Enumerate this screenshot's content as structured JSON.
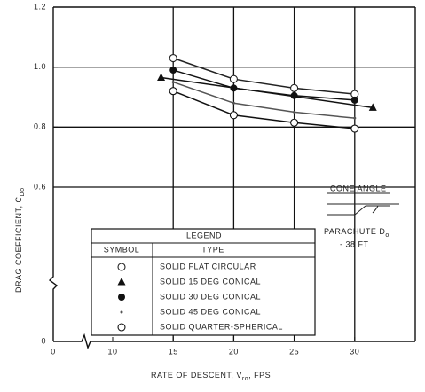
{
  "chart_data": {
    "type": "line",
    "xlabel": "RATE OF DESCENT, V",
    "xlabel_sub": "ro",
    "xlabel_end": ", FPS",
    "ylabel": "DRAG COEFFICIENT, C",
    "ylabel_sub": "Do",
    "xlim": [
      0,
      35
    ],
    "xticks": [
      0,
      10,
      15,
      20,
      25,
      30
    ],
    "ylim": [
      0,
      1.2
    ],
    "yticks": [
      0,
      0.6,
      0.8,
      {
        "value": 1.0,
        "label": "1.0"
      },
      1.2
    ],
    "axis_break": true,
    "grid": true,
    "legend": {
      "title": "LEGEND",
      "symbol_header": "SYMBOL",
      "type_header": "TYPE"
    },
    "series": [
      {
        "name": "SOLID FLAT CIRCULAR",
        "marker": "circle-open",
        "color": "#222",
        "x": [
          15,
          20,
          25,
          30
        ],
        "values": [
          1.03,
          0.96,
          0.93,
          0.91
        ]
      },
      {
        "name": "SOLID 15 DEG CONICAL",
        "marker": "triangle",
        "color": "#111",
        "x": [
          14,
          31.5
        ],
        "values": [
          0.965,
          0.865
        ]
      },
      {
        "name": "SOLID 30 DEG CONICAL",
        "marker": "circle-filled",
        "color": "#111",
        "x": [
          15,
          20,
          25,
          30
        ],
        "values": [
          0.99,
          0.93,
          0.905,
          0.89
        ]
      },
      {
        "name": "SOLID 45 DEG CONICAL",
        "marker": "dot",
        "color": "#555",
        "x": [
          15,
          20,
          25,
          30
        ],
        "values": [
          0.95,
          0.88,
          0.85,
          0.83
        ]
      },
      {
        "name": "SOLID QUARTER-SPHERICAL",
        "marker": "circle-open",
        "color": "#111",
        "x": [
          15,
          20,
          25,
          30
        ],
        "values": [
          0.92,
          0.84,
          0.815,
          0.795
        ]
      }
    ],
    "annotations": {
      "cone_angle": "CONE ANGLE",
      "parachute": "PARACHUTE D",
      "parachute_sub": "o",
      "size": "- 38 FT"
    }
  }
}
